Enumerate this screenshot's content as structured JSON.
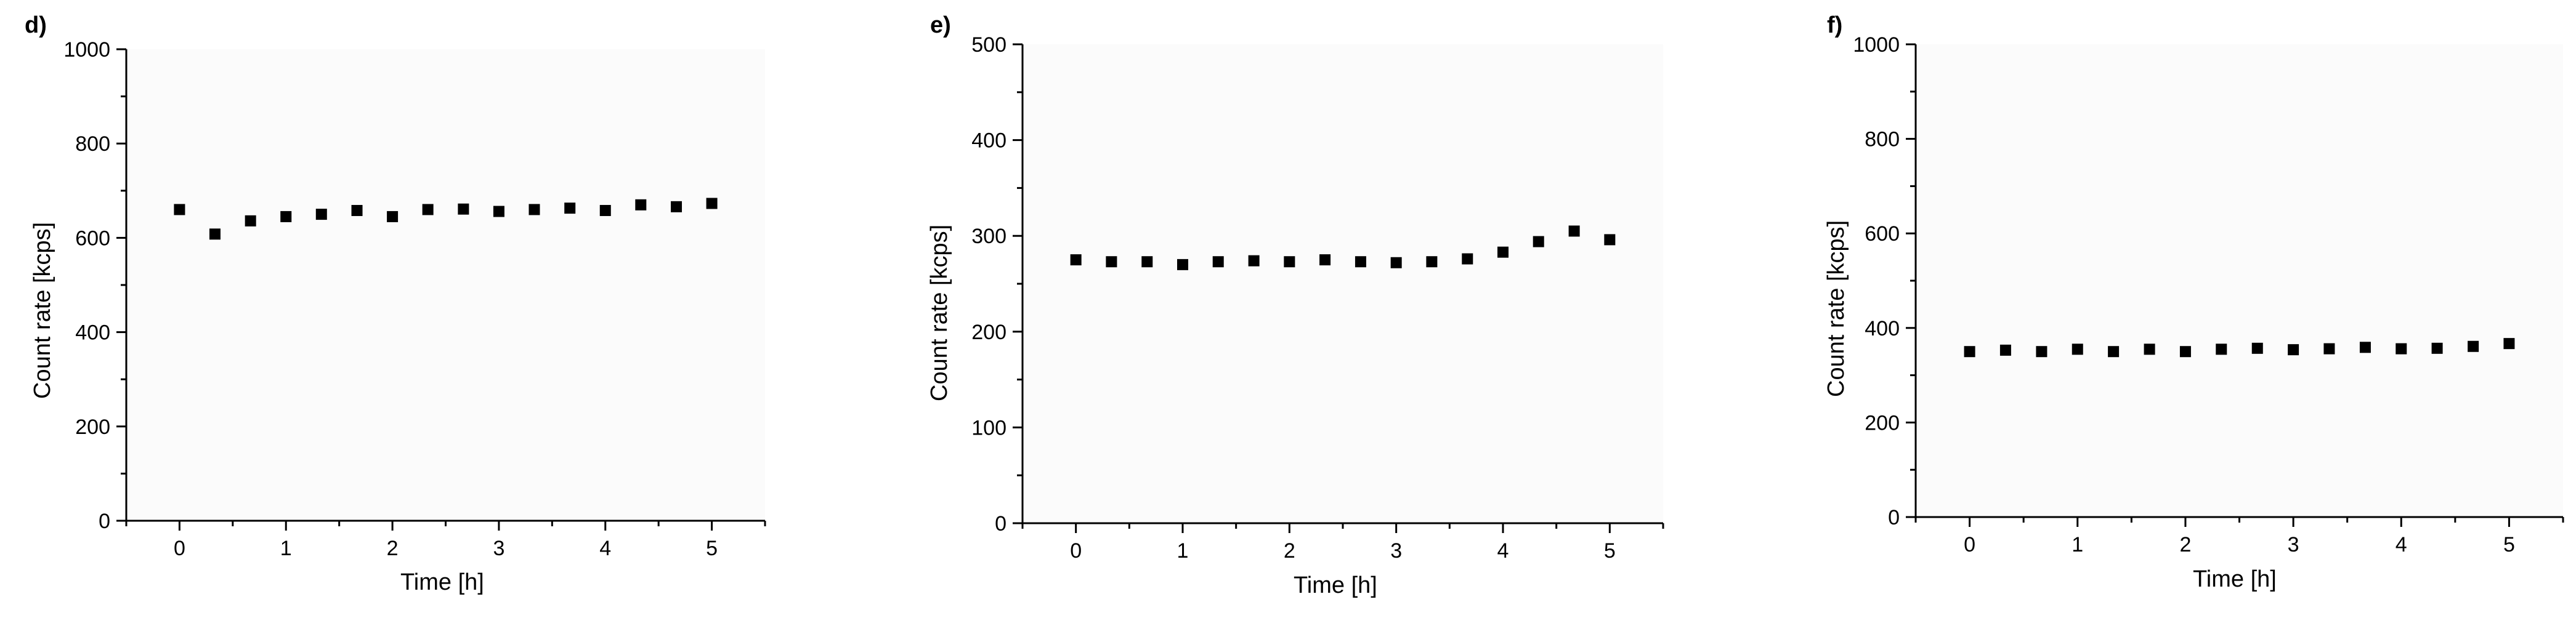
{
  "chart_data": [
    {
      "panel_label": "d)",
      "type": "scatter",
      "xlabel": "Time [h]",
      "ylabel": "Count rate [kcps]",
      "xlim": [
        -0.5,
        5.5
      ],
      "ylim": [
        0,
        1000
      ],
      "xticks": [
        0,
        1,
        2,
        3,
        4,
        5
      ],
      "yticks": [
        0,
        200,
        400,
        600,
        800,
        1000
      ],
      "grid": false,
      "series": [
        {
          "x": [
            0,
            0.333,
            0.667,
            1,
            1.333,
            1.667,
            2,
            2.333,
            2.667,
            3,
            3.333,
            3.667,
            4,
            4.333,
            4.667,
            5
          ],
          "y": [
            660,
            608,
            636,
            645,
            650,
            658,
            645,
            660,
            661,
            656,
            660,
            663,
            658,
            670,
            666,
            673
          ]
        }
      ]
    },
    {
      "panel_label": "e)",
      "type": "scatter",
      "xlabel": "Time [h]",
      "ylabel": "Count rate [kcps]",
      "xlim": [
        -0.5,
        5.5
      ],
      "ylim": [
        0,
        500
      ],
      "xticks": [
        0,
        1,
        2,
        3,
        4,
        5
      ],
      "yticks": [
        0,
        100,
        200,
        300,
        400,
        500
      ],
      "grid": false,
      "series": [
        {
          "x": [
            0,
            0.333,
            0.667,
            1,
            1.333,
            1.667,
            2,
            2.333,
            2.667,
            3,
            3.333,
            3.667,
            4,
            4.333,
            4.667,
            5
          ],
          "y": [
            275,
            273,
            273,
            270,
            273,
            274,
            273,
            275,
            273,
            272,
            273,
            276,
            283,
            294,
            305,
            296
          ]
        }
      ]
    },
    {
      "panel_label": "f)",
      "type": "scatter",
      "xlabel": "Time [h]",
      "ylabel": "Count rate [kcps]",
      "xlim": [
        -0.5,
        5.5
      ],
      "ylim": [
        0,
        1000
      ],
      "xticks": [
        0,
        1,
        2,
        3,
        4,
        5
      ],
      "yticks": [
        0,
        200,
        400,
        600,
        800,
        1000
      ],
      "grid": false,
      "series": [
        {
          "x": [
            0,
            0.333,
            0.667,
            1,
            1.333,
            1.667,
            2,
            2.333,
            2.667,
            3,
            3.333,
            3.667,
            4,
            4.333,
            4.667,
            5
          ],
          "y": [
            350,
            353,
            350,
            355,
            350,
            355,
            350,
            355,
            357,
            354,
            356,
            359,
            356,
            357,
            361,
            367
          ]
        }
      ]
    }
  ]
}
